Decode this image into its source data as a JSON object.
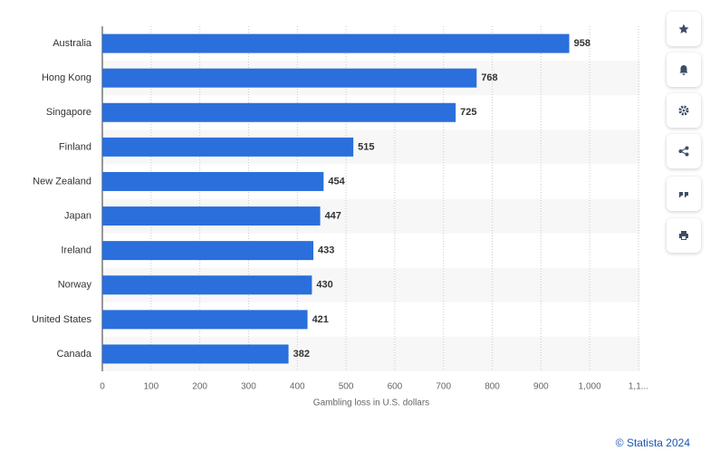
{
  "chart_data": {
    "type": "bar",
    "orientation": "horizontal",
    "x_label": "Gambling loss in U.S. dollars",
    "categories": [
      "Australia",
      "Hong Kong",
      "Singapore",
      "Finland",
      "New Zealand",
      "Japan",
      "Ireland",
      "Norway",
      "United States",
      "Canada"
    ],
    "values": [
      958,
      768,
      725,
      515,
      454,
      447,
      433,
      430,
      421,
      382
    ],
    "color": "#2a6fdb",
    "xlim": [
      0,
      1100
    ],
    "xticks": [
      0,
      100,
      200,
      300,
      400,
      500,
      600,
      700,
      800,
      900,
      {
        "value": 1000,
        "label": "1,000"
      },
      {
        "value": 1100,
        "label": "1,1..."
      }
    ],
    "grid": true
  },
  "footer": "© Statista 2024"
}
